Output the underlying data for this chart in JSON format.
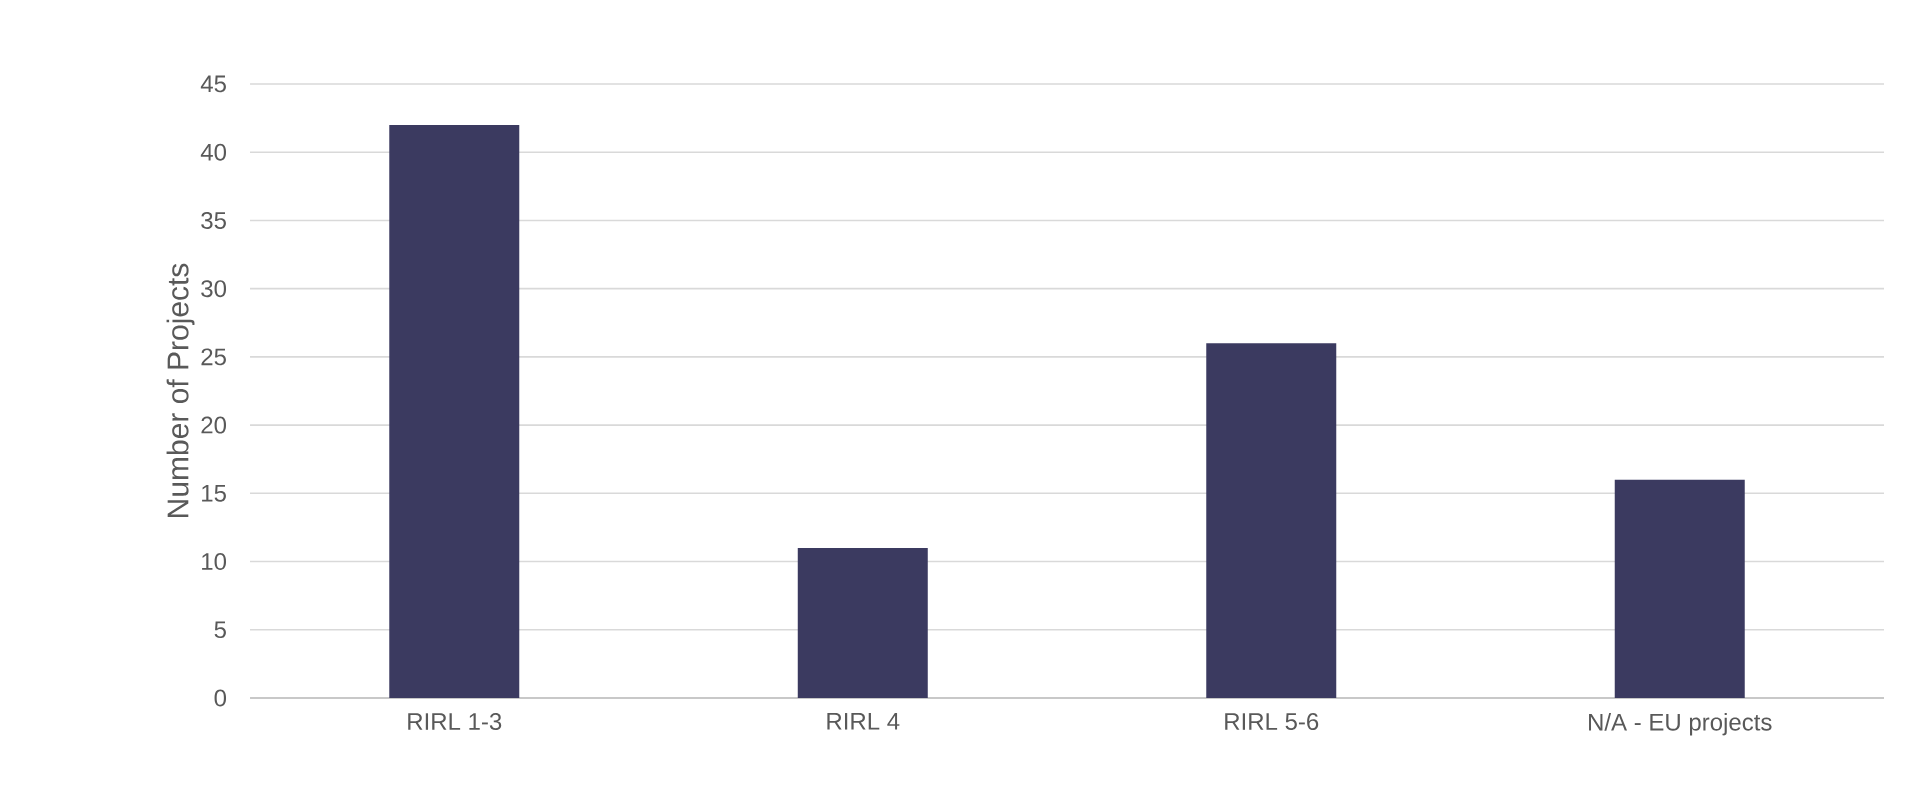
{
  "chart_data": {
    "type": "bar",
    "ylabel": "Number of Projects",
    "categories": [
      "RIRL 1-3",
      "RIRL 4",
      "RIRL 5-6",
      "N/A - EU projects"
    ],
    "values": [
      42,
      11,
      26,
      16
    ],
    "color": "#3b3a60",
    "ylim": [
      0,
      45
    ],
    "yticks": [
      0,
      5,
      10,
      15,
      20,
      25,
      30,
      35,
      40,
      45
    ],
    "grid": "y"
  }
}
